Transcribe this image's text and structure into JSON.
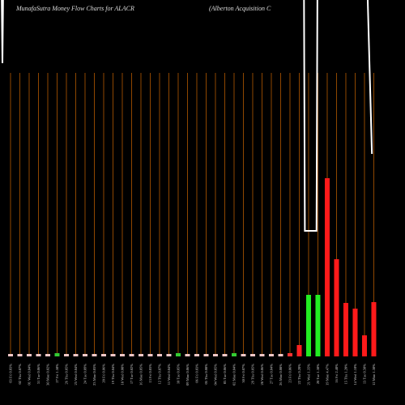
{
  "chart_data": {
    "type": "bar",
    "title": "MunafaSutra  Money  Flow  Charts for ALACR",
    "subtitle": "(Alberton  Acquisition  C",
    "x": [
      0,
      1,
      2,
      3,
      4,
      5,
      6,
      7,
      8,
      9,
      10,
      11,
      12,
      13,
      14,
      15,
      16,
      17,
      18,
      19,
      20,
      21,
      22,
      23,
      24,
      25,
      26,
      27,
      28,
      29,
      30,
      31,
      32,
      33,
      34,
      35,
      36,
      37,
      38,
      39
    ],
    "categories": [
      "03 Fri 0.03%",
      "02 Thu 0.07%",
      "01 Wed 0.04%",
      "31 Tue 0.06%",
      "30 Mon 0.02%",
      "27 Fri 1.50%",
      "26 Thu 0.05%",
      "25 Wed 0.04%",
      "24 Tue 0.09%",
      "23 Mon 0.03%",
      "20 Fri 0.06%",
      "19 Thu 0.04%",
      "18 Wed 0.08%",
      "17 Tue 0.02%",
      "16 Mon 0.05%",
      "13 Fri 0.03%",
      "12 Thu 0.07%",
      "11 Wed 0.04%",
      "10 Tue 0.05%",
      "09 Mon 0.06%",
      "06 Fri 0.03%",
      "05 Thu 0.08%",
      "04 Wed 0.05%",
      "03 Tue 0.06%",
      "02 Mon 0.04%",
      "30 Fri 0.07%",
      "29 Thu 0.05%",
      "28 Wed 0.06%",
      "27 Tue 0.04%",
      "26 Mon 0.08%",
      "23 Fri 0.06%",
      "22 Thu 0.20%",
      "21 Wed 1.35%",
      "20 Tue 1.30%",
      "19 Mon 4.47%",
      "16 Fri 2.40%",
      "15 Thu 1.20%",
      "14 Wed 1.10%",
      "13 Tue 0.50%",
      "12 Mon 1.30%"
    ],
    "values": [
      3,
      3,
      3,
      3,
      3,
      4,
      3,
      3,
      3,
      3,
      3,
      3,
      3,
      3,
      3,
      3,
      3,
      3,
      4,
      3,
      3,
      3,
      3,
      3,
      4,
      3,
      3,
      3,
      3,
      3,
      4,
      14,
      76,
      76,
      220,
      120,
      66,
      59,
      26,
      67
    ],
    "colors": [
      "#f0c8c8",
      "#f0c8c8",
      "#f0c8c8",
      "#f0c8c8",
      "#f0c8c8",
      "#33cc33",
      "#f0c8c8",
      "#f0c8c8",
      "#f0c8c8",
      "#f0c8c8",
      "#f0c8c8",
      "#f0c8c8",
      "#f0c8c8",
      "#f0c8c8",
      "#f0c8c8",
      "#f0c8c8",
      "#f0c8c8",
      "#f0c8c8",
      "#33cc33",
      "#f0c8c8",
      "#f0c8c8",
      "#f0c8c8",
      "#f0c8c8",
      "#f0c8c8",
      "#33cc33",
      "#f0c8c8",
      "#f0c8c8",
      "#f0c8c8",
      "#f0c8c8",
      "#f0c8c8",
      "#ff3333",
      "#ff2222",
      "#22ee22",
      "#22ee22",
      "#ff1a1a",
      "#ff1a1a",
      "#ff1a1a",
      "#ff1a1a",
      "#ff1a1a",
      "#ff1a1a"
    ],
    "xlim": [
      -1.13,
      42.35
    ],
    "ylim": [
      0,
      350
    ],
    "price_line": {
      "color": "#ffffff",
      "x": [
        -0.96,
        -0.87,
        -0.78,
        null,
        31.5,
        31.6,
        32.85,
        32.95,
        null,
        38.3,
        38.8
      ],
      "values": [
        520,
        422,
        520,
        null,
        520,
        215,
        215,
        520,
        null,
        520,
        310
      ],
      "ylim": [
        0,
        500
      ]
    }
  }
}
